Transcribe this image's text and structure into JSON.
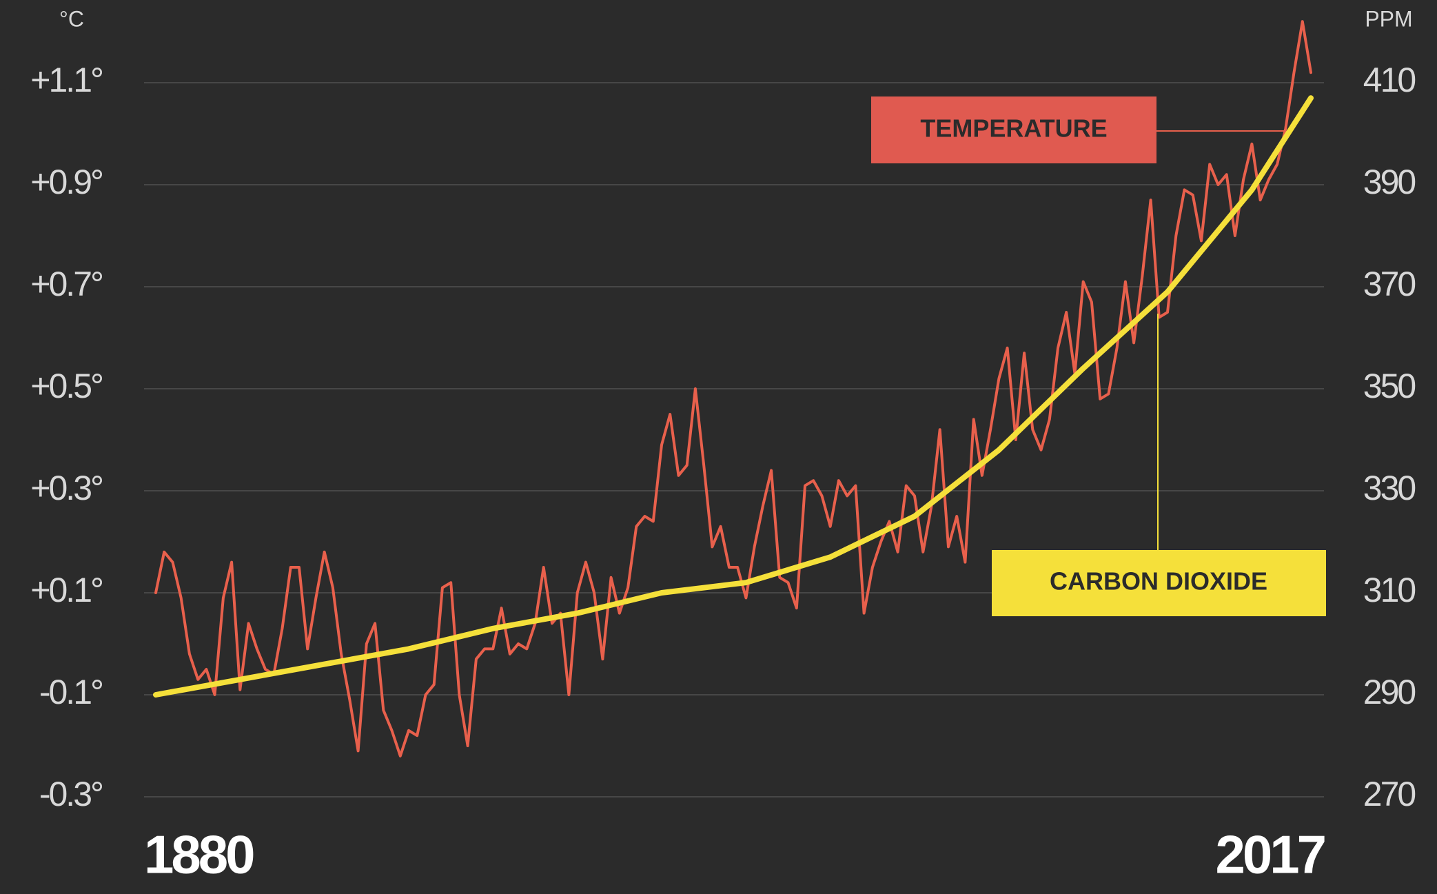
{
  "chart_data": {
    "type": "line",
    "y_unit_label": "°C",
    "y2_unit_label": "PPM",
    "xlim": [
      1880,
      2017
    ],
    "xticks": [
      1880,
      2017
    ],
    "ylim": [
      -0.3,
      1.25
    ],
    "yticks": [
      {
        "value": -0.3,
        "label": "-0.3°"
      },
      {
        "value": -0.1,
        "label": "-0.1°"
      },
      {
        "value": 0.1,
        "label": "+0.1°"
      },
      {
        "value": 0.3,
        "label": "+0.3°"
      },
      {
        "value": 0.5,
        "label": "+0.5°"
      },
      {
        "value": 0.7,
        "label": "+0.7°"
      },
      {
        "value": 0.9,
        "label": "+0.9°"
      },
      {
        "value": 1.1,
        "label": "+1.1°"
      }
    ],
    "y2lim": [
      270,
      425
    ],
    "y2ticks": [
      270,
      290,
      310,
      330,
      350,
      370,
      390,
      410
    ],
    "grid": true,
    "series": [
      {
        "name": "TEMPERATURE",
        "color": "#e8604c",
        "axis": "y",
        "x": [
          1880,
          1881,
          1882,
          1883,
          1884,
          1885,
          1886,
          1887,
          1888,
          1889,
          1890,
          1891,
          1892,
          1893,
          1894,
          1895,
          1896,
          1897,
          1898,
          1899,
          1900,
          1901,
          1902,
          1903,
          1904,
          1905,
          1906,
          1907,
          1908,
          1909,
          1910,
          1911,
          1912,
          1913,
          1914,
          1915,
          1916,
          1917,
          1918,
          1919,
          1920,
          1921,
          1922,
          1923,
          1924,
          1925,
          1926,
          1927,
          1928,
          1929,
          1930,
          1931,
          1932,
          1933,
          1934,
          1935,
          1936,
          1937,
          1938,
          1939,
          1940,
          1941,
          1942,
          1943,
          1944,
          1945,
          1946,
          1947,
          1948,
          1949,
          1950,
          1951,
          1952,
          1953,
          1954,
          1955,
          1956,
          1957,
          1958,
          1959,
          1960,
          1961,
          1962,
          1963,
          1964,
          1965,
          1966,
          1967,
          1968,
          1969,
          1970,
          1971,
          1972,
          1973,
          1974,
          1975,
          1976,
          1977,
          1978,
          1979,
          1980,
          1981,
          1982,
          1983,
          1984,
          1985,
          1986,
          1987,
          1988,
          1989,
          1990,
          1991,
          1992,
          1993,
          1994,
          1995,
          1996,
          1997,
          1998,
          1999,
          2000,
          2001,
          2002,
          2003,
          2004,
          2005,
          2006,
          2007,
          2008,
          2009,
          2010,
          2011,
          2012,
          2013,
          2014,
          2015,
          2016,
          2017
        ],
        "values": [
          0.1,
          0.18,
          0.16,
          0.09,
          -0.02,
          -0.07,
          -0.05,
          -0.1,
          0.09,
          0.16,
          -0.09,
          0.04,
          -0.01,
          -0.05,
          -0.06,
          0.03,
          0.15,
          0.15,
          -0.01,
          0.09,
          0.18,
          0.11,
          -0.02,
          -0.11,
          -0.21,
          0.0,
          0.04,
          -0.13,
          -0.17,
          -0.22,
          -0.17,
          -0.18,
          -0.1,
          -0.08,
          0.11,
          0.12,
          -0.1,
          -0.2,
          -0.03,
          -0.01,
          -0.01,
          0.07,
          -0.02,
          0.0,
          -0.01,
          0.04,
          0.15,
          0.04,
          0.06,
          -0.1,
          0.1,
          0.16,
          0.1,
          -0.03,
          0.13,
          0.06,
          0.11,
          0.23,
          0.25,
          0.24,
          0.39,
          0.45,
          0.33,
          0.35,
          0.5,
          0.35,
          0.19,
          0.23,
          0.15,
          0.15,
          0.09,
          0.19,
          0.27,
          0.34,
          0.13,
          0.12,
          0.07,
          0.31,
          0.32,
          0.29,
          0.23,
          0.32,
          0.29,
          0.31,
          0.06,
          0.15,
          0.2,
          0.24,
          0.18,
          0.31,
          0.29,
          0.18,
          0.27,
          0.42,
          0.19,
          0.25,
          0.16,
          0.44,
          0.33,
          0.42,
          0.52,
          0.58,
          0.4,
          0.57,
          0.42,
          0.38,
          0.44,
          0.58,
          0.65,
          0.53,
          0.71,
          0.67,
          0.48,
          0.49,
          0.58,
          0.71,
          0.59,
          0.72,
          0.87,
          0.64,
          0.65,
          0.8,
          0.89,
          0.88,
          0.79,
          0.94,
          0.9,
          0.92,
          0.8,
          0.91,
          0.98,
          0.87,
          0.91,
          0.94,
          1.01,
          1.12,
          1.22,
          1.12
        ]
      },
      {
        "name": "CARBON DIOXIDE",
        "color": "#f5e03a",
        "axis": "y2",
        "x": [
          1880,
          1890,
          1900,
          1910,
          1920,
          1930,
          1940,
          1950,
          1960,
          1970,
          1980,
          1990,
          2000,
          2010,
          2017
        ],
        "values": [
          290,
          293,
          296,
          299,
          303,
          306,
          310,
          312,
          317,
          325,
          338,
          354,
          369,
          389,
          407
        ]
      }
    ]
  }
}
